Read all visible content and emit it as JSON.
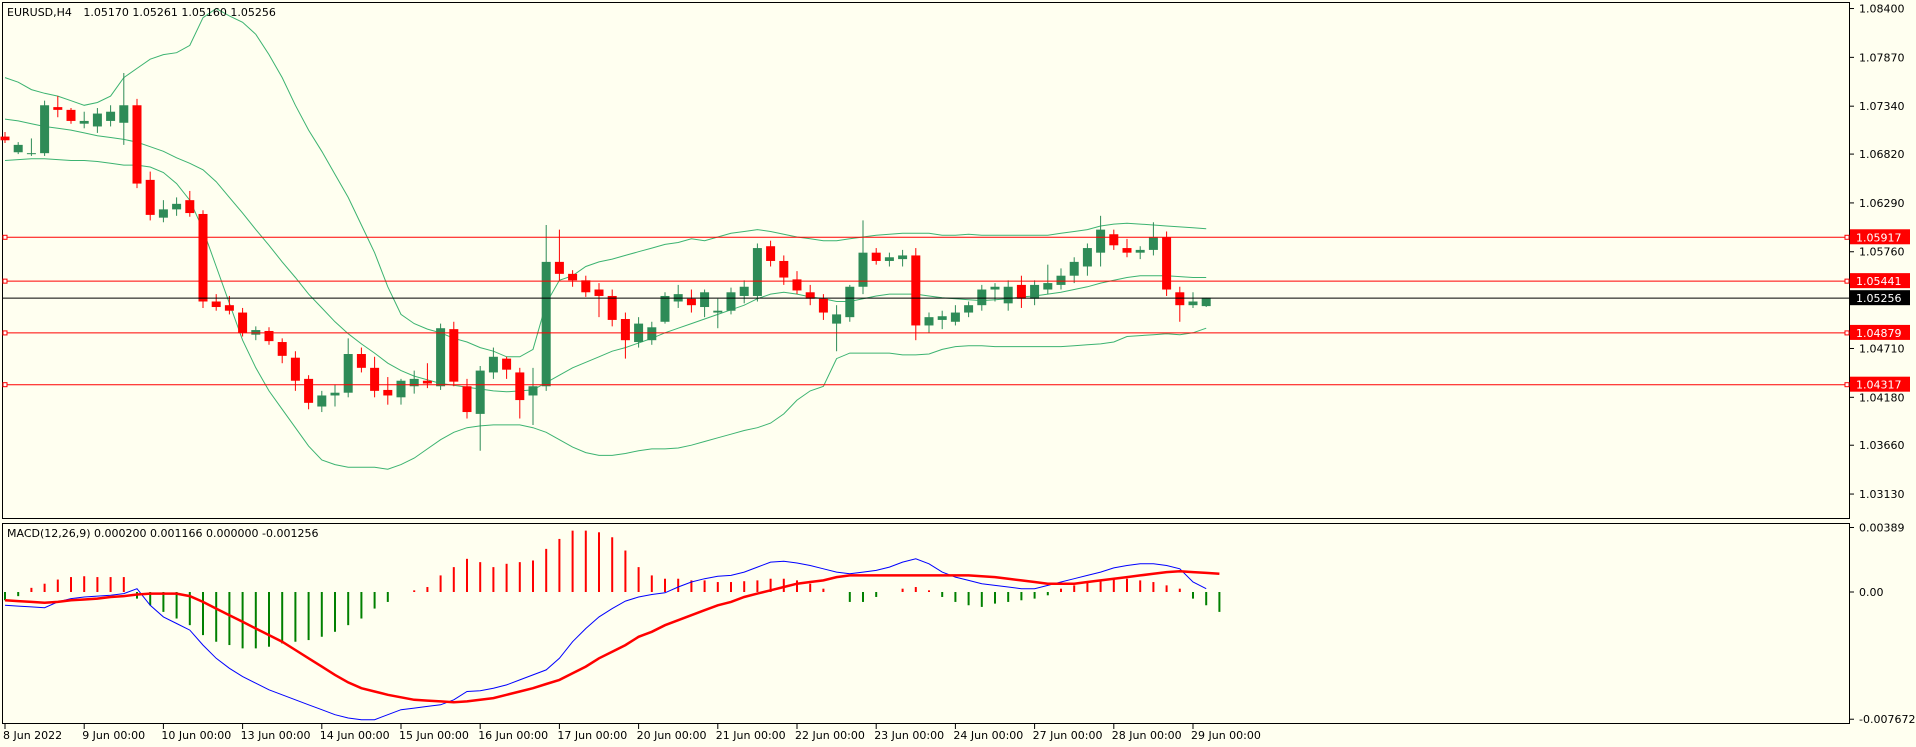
{
  "header": {
    "symbol": "EURUSD,H4",
    "ohlc": "1.05170 1.05261 1.05160 1.05256"
  },
  "macd_header": "MACD(12,26,9) 0.000200 0.001166 0.000000 -0.001256",
  "colors": {
    "background": "#fffff0",
    "bull_candle": "#2e8b57",
    "bear_candle": "#ff0000",
    "bollinger": "#3cb371",
    "level_line": "#ff0000",
    "current_price_line": "#000000",
    "macd_line": "#0000ff",
    "signal_line": "#ff0000",
    "hist_positive": "#ff0000",
    "hist_negative": "#008000"
  },
  "chart_data": [
    {
      "type": "candlestick",
      "title": "",
      "y_axis": {
        "range": [
          1.0287,
          1.0846
        ],
        "ticks": [
          "1.08400",
          "1.07870",
          "1.07340",
          "1.06820",
          "1.06290",
          "1.05760",
          "1.04710",
          "1.04180",
          "1.03660",
          "1.03130"
        ]
      },
      "x_axis": {
        "ticks": [
          "8 Jun 2022",
          "9 Jun 00:00",
          "10 Jun 00:00",
          "13 Jun 00:00",
          "14 Jun 00:00",
          "15 Jun 00:00",
          "16 Jun 00:00",
          "17 Jun 00:00",
          "20 Jun 00:00",
          "21 Jun 00:00",
          "22 Jun 00:00",
          "23 Jun 00:00",
          "24 Jun 00:00",
          "27 Jun 00:00",
          "28 Jun 00:00",
          "29 Jun 00:00"
        ],
        "tick_bar_index": [
          0,
          6,
          12,
          18,
          24,
          30,
          36,
          42,
          48,
          54,
          60,
          66,
          72,
          78,
          84,
          90
        ]
      },
      "horizontal_levels": [
        {
          "price": 1.05917,
          "label": "1.05917"
        },
        {
          "price": 1.05441,
          "label": "1.05441"
        },
        {
          "price": 1.04879,
          "label": "1.04879"
        },
        {
          "price": 1.04317,
          "label": "1.04317"
        }
      ],
      "current_price": {
        "price": 1.05256,
        "label": "1.05256"
      },
      "candles": [
        [
          1.0701,
          1.0706,
          1.0694,
          1.0697
        ],
        [
          1.0684,
          1.0695,
          1.0682,
          1.0692
        ],
        [
          1.0682,
          1.0699,
          1.068,
          1.0683
        ],
        [
          1.0683,
          1.074,
          1.068,
          1.0735
        ],
        [
          1.0733,
          1.0745,
          1.0722,
          1.073
        ],
        [
          1.073,
          1.0732,
          1.0715,
          1.0718
        ],
        [
          1.0715,
          1.0728,
          1.071,
          1.0718
        ],
        [
          1.0712,
          1.0732,
          1.0705,
          1.0726
        ],
        [
          1.0718,
          1.0735,
          1.0712,
          1.0728
        ],
        [
          1.0716,
          1.077,
          1.0692,
          1.0735
        ],
        [
          1.0735,
          1.0742,
          1.0645,
          1.065
        ],
        [
          1.0654,
          1.0663,
          1.061,
          1.0616
        ],
        [
          1.0613,
          1.0632,
          1.0608,
          1.0622
        ],
        [
          1.0622,
          1.0635,
          1.0615,
          1.0628
        ],
        [
          1.0632,
          1.0642,
          1.0614,
          1.0618
        ],
        [
          1.0617,
          1.0621,
          1.0515,
          1.0522
        ],
        [
          1.0522,
          1.053,
          1.0512,
          1.0516
        ],
        [
          1.0518,
          1.0528,
          1.0508,
          1.0512
        ],
        [
          1.051,
          1.0515,
          1.0484,
          1.0488
        ],
        [
          1.0486,
          1.0495,
          1.048,
          1.0491
        ],
        [
          1.049,
          1.0494,
          1.0475,
          1.0479
        ],
        [
          1.0478,
          1.0482,
          1.0455,
          1.0463
        ],
        [
          1.0461,
          1.0468,
          1.0425,
          1.0436
        ],
        [
          1.0438,
          1.0442,
          1.0405,
          1.0412
        ],
        [
          1.0408,
          1.0425,
          1.0402,
          1.042
        ],
        [
          1.042,
          1.0432,
          1.0408,
          1.0423
        ],
        [
          1.0423,
          1.0482,
          1.0418,
          1.0465
        ],
        [
          1.0465,
          1.0472,
          1.0445,
          1.045
        ],
        [
          1.045,
          1.0462,
          1.0418,
          1.0425
        ],
        [
          1.0426,
          1.044,
          1.041,
          1.042
        ],
        [
          1.0418,
          1.0438,
          1.041,
          1.0436
        ],
        [
          1.043,
          1.0447,
          1.0422,
          1.0438
        ],
        [
          1.0436,
          1.0455,
          1.0428,
          1.0433
        ],
        [
          1.043,
          1.0498,
          1.0426,
          1.0493
        ],
        [
          1.0492,
          1.05,
          1.043,
          1.0435
        ],
        [
          1.043,
          1.0438,
          1.0395,
          1.0402
        ],
        [
          1.04,
          1.0452,
          1.036,
          1.0447
        ],
        [
          1.0445,
          1.0472,
          1.0438,
          1.0462
        ],
        [
          1.046,
          1.0462,
          1.0438,
          1.0448
        ],
        [
          1.0445,
          1.045,
          1.0395,
          1.0415
        ],
        [
          1.042,
          1.045,
          1.0388,
          1.043
        ],
        [
          1.043,
          1.0605,
          1.0425,
          1.0565
        ],
        [
          1.0565,
          1.06,
          1.0545,
          1.0552
        ],
        [
          1.0552,
          1.0556,
          1.0538,
          1.0545
        ],
        [
          1.0545,
          1.055,
          1.0527,
          1.0532
        ],
        [
          1.0535,
          1.0542,
          1.0505,
          1.0528
        ],
        [
          1.0528,
          1.0535,
          1.0495,
          1.0502
        ],
        [
          1.0503,
          1.051,
          1.046,
          1.048
        ],
        [
          1.0478,
          1.0505,
          1.0472,
          1.0498
        ],
        [
          1.048,
          1.05,
          1.0475,
          1.0494
        ],
        [
          1.05,
          1.0532,
          1.0498,
          1.0528
        ],
        [
          1.0522,
          1.054,
          1.0515,
          1.053
        ],
        [
          1.0525,
          1.0535,
          1.051,
          1.0518
        ],
        [
          1.0516,
          1.0535,
          1.0505,
          1.0532
        ],
        [
          1.051,
          1.0525,
          1.0493,
          1.0512
        ],
        [
          1.0512,
          1.0537,
          1.0508,
          1.0532
        ],
        [
          1.0528,
          1.0545,
          1.052,
          1.0538
        ],
        [
          1.0528,
          1.0585,
          1.0522,
          1.058
        ],
        [
          1.0582,
          1.0588,
          1.056,
          1.0566
        ],
        [
          1.0566,
          1.0572,
          1.054,
          1.0548
        ],
        [
          1.0546,
          1.0555,
          1.053,
          1.0534
        ],
        [
          1.0532,
          1.054,
          1.0518,
          1.0525
        ],
        [
          1.0525,
          1.053,
          1.0502,
          1.051
        ],
        [
          1.0498,
          1.0518,
          1.0468,
          1.0508
        ],
        [
          1.0505,
          1.054,
          1.05,
          1.0538
        ],
        [
          1.0538,
          1.061,
          1.053,
          1.0575
        ],
        [
          1.0575,
          1.058,
          1.0562,
          1.0566
        ],
        [
          1.0566,
          1.0575,
          1.056,
          1.057
        ],
        [
          1.0568,
          1.0578,
          1.056,
          1.0572
        ],
        [
          1.0572,
          1.058,
          1.048,
          1.0496
        ],
        [
          1.0496,
          1.051,
          1.0488,
          1.0505
        ],
        [
          1.0502,
          1.0512,
          1.0492,
          1.0506
        ],
        [
          1.05,
          1.0518,
          1.0496,
          1.051
        ],
        [
          1.051,
          1.0522,
          1.0505,
          1.0518
        ],
        [
          1.0518,
          1.054,
          1.0512,
          1.0535
        ],
        [
          1.0535,
          1.0542,
          1.0522,
          1.0538
        ],
        [
          1.052,
          1.0545,
          1.0512,
          1.0538
        ],
        [
          1.054,
          1.055,
          1.0515,
          1.0525
        ],
        [
          1.0525,
          1.0545,
          1.0518,
          1.054
        ],
        [
          1.0535,
          1.0562,
          1.053,
          1.0542
        ],
        [
          1.054,
          1.0558,
          1.0535,
          1.055
        ],
        [
          1.055,
          1.057,
          1.0542,
          1.0565
        ],
        [
          1.056,
          1.0585,
          1.055,
          1.058
        ],
        [
          1.0575,
          1.0615,
          1.056,
          1.06
        ],
        [
          1.0595,
          1.06,
          1.0578,
          1.0583
        ],
        [
          1.058,
          1.059,
          1.057,
          1.0575
        ],
        [
          1.0575,
          1.0582,
          1.0568,
          1.0578
        ],
        [
          1.0578,
          1.0608,
          1.0572,
          1.0592
        ],
        [
          1.0592,
          1.0598,
          1.0528,
          1.0535
        ],
        [
          1.0532,
          1.0538,
          1.05,
          1.0518
        ],
        [
          1.0518,
          1.0532,
          1.0515,
          1.0522
        ],
        [
          1.0517,
          1.0526,
          1.0516,
          1.0526
        ]
      ],
      "bollinger_upper": [
        1.0765,
        1.076,
        1.0752,
        1.0748,
        1.0745,
        1.074,
        1.0735,
        1.0738,
        1.0745,
        1.0765,
        1.0775,
        1.0785,
        1.079,
        1.0792,
        1.08,
        1.083,
        1.084,
        1.0832,
        1.0825,
        1.0812,
        1.079,
        1.0765,
        1.0735,
        1.0708,
        1.0685,
        1.066,
        1.0635,
        1.0605,
        1.0575,
        1.0538,
        1.0508,
        1.0498,
        1.0492,
        1.0488,
        1.0482,
        1.0478,
        1.0472,
        1.0468,
        1.0462,
        1.0462,
        1.047,
        1.052,
        1.0545,
        1.055,
        1.056,
        1.0565,
        1.0568,
        1.0572,
        1.0576,
        1.058,
        1.0584,
        1.0586,
        1.059,
        1.0588,
        1.0592,
        1.0596,
        1.0598,
        1.06,
        1.0598,
        1.0595,
        1.0592,
        1.059,
        1.0588,
        1.0588,
        1.059,
        1.0592,
        1.0594,
        1.0595,
        1.0596,
        1.0596,
        1.0596,
        1.0594,
        1.0594,
        1.0595,
        1.0594,
        1.0594,
        1.0594,
        1.0594,
        1.0594,
        1.0594,
        1.0596,
        1.0598,
        1.06,
        1.0604,
        1.0606,
        1.0607,
        1.0606,
        1.0605,
        1.0604,
        1.0603,
        1.0602,
        1.0601
      ],
      "bollinger_middle": [
        1.072,
        1.0718,
        1.0715,
        1.0712,
        1.071,
        1.0708,
        1.0705,
        1.0702,
        1.07,
        1.0698,
        1.0695,
        1.069,
        1.0685,
        1.0678,
        1.0672,
        1.0665,
        1.0652,
        1.0635,
        1.0618,
        1.06,
        1.0583,
        1.0565,
        1.0548,
        1.053,
        1.0515,
        1.05,
        1.0487,
        1.0476,
        1.0466,
        1.0455,
        1.0447,
        1.0441,
        1.0437,
        1.0433,
        1.0431,
        1.0429,
        1.0427,
        1.0425,
        1.0424,
        1.0425,
        1.0426,
        1.0434,
        1.0442,
        1.045,
        1.0456,
        1.0462,
        1.0468,
        1.0472,
        1.0477,
        1.0482,
        1.0488,
        1.0493,
        1.0498,
        1.0503,
        1.0508,
        1.0513,
        1.0518,
        1.0525,
        1.053,
        1.0532,
        1.053,
        1.0527,
        1.0525,
        1.0522,
        1.0522,
        1.0525,
        1.0528,
        1.053,
        1.053,
        1.053,
        1.0528,
        1.0526,
        1.0525,
        1.0524,
        1.0523,
        1.0524,
        1.0525,
        1.0527,
        1.0528,
        1.053,
        1.0532,
        1.0535,
        1.0538,
        1.0542,
        1.0545,
        1.0548,
        1.055,
        1.055,
        1.055,
        1.0549,
        1.0548,
        1.0548
      ],
      "bollinger_lower": [
        1.0675,
        1.0676,
        1.0677,
        1.0677,
        1.0676,
        1.0675,
        1.0675,
        1.0674,
        1.0672,
        1.067,
        1.067,
        1.0668,
        1.0662,
        1.065,
        1.0632,
        1.06,
        1.056,
        1.052,
        1.048,
        1.045,
        1.0425,
        1.0405,
        1.0385,
        1.0365,
        1.035,
        1.0345,
        1.0342,
        1.0342,
        1.0342,
        1.034,
        1.0345,
        1.0352,
        1.0362,
        1.0372,
        1.038,
        1.0385,
        1.0387,
        1.0388,
        1.0388,
        1.0388,
        1.0385,
        1.038,
        1.0372,
        1.0364,
        1.0358,
        1.0355,
        1.0355,
        1.0357,
        1.036,
        1.0362,
        1.0362,
        1.0363,
        1.0366,
        1.037,
        1.0374,
        1.0378,
        1.0382,
        1.0385,
        1.039,
        1.04,
        1.0415,
        1.0425,
        1.043,
        1.046,
        1.0466,
        1.0466,
        1.0466,
        1.0466,
        1.0464,
        1.0464,
        1.0465,
        1.047,
        1.0473,
        1.0474,
        1.0474,
        1.0473,
        1.0473,
        1.0473,
        1.0473,
        1.0473,
        1.0473,
        1.0474,
        1.0475,
        1.0476,
        1.0478,
        1.0484,
        1.0485,
        1.0486,
        1.0487,
        1.0486,
        1.0488,
        1.0493
      ]
    },
    {
      "type": "line",
      "title": "MACD(12,26,9)",
      "y_axis": {
        "range": [
          -0.0079,
          0.0041
        ],
        "ticks": [
          "0.00389",
          "0.00",
          "-0.007672"
        ]
      },
      "macd": [
        -0.0008,
        -0.00085,
        -0.0009,
        -0.00095,
        -0.0006,
        -0.0004,
        -0.0003,
        -0.00025,
        -0.0002,
        -0.0001,
        0.0002,
        -0.0008,
        -0.0015,
        -0.0019,
        -0.0023,
        -0.0032,
        -0.004,
        -0.0046,
        -0.0051,
        -0.0055,
        -0.0059,
        -0.0062,
        -0.0065,
        -0.0068,
        -0.0071,
        -0.0074,
        -0.0076,
        -0.0077,
        -0.0077,
        -0.0074,
        -0.0071,
        -0.007,
        -0.0069,
        -0.0068,
        -0.0065,
        -0.006,
        -0.00595,
        -0.0058,
        -0.0056,
        -0.0053,
        -0.005,
        -0.0047,
        -0.004,
        -0.003,
        -0.0022,
        -0.0015,
        -0.001,
        -0.00055,
        -0.0003,
        -0.00015,
        -5e-05,
        0.0003,
        0.0006,
        0.0008,
        0.00095,
        0.001,
        0.0012,
        0.0015,
        0.0018,
        0.00185,
        0.00175,
        0.0016,
        0.0014,
        0.0012,
        0.0011,
        0.0012,
        0.0013,
        0.0015,
        0.0018,
        0.002,
        0.0017,
        0.0012,
        0.0009,
        0.0007,
        0.0005,
        0.0004,
        0.0003,
        0.0002,
        0.0002,
        0.0004,
        0.0006,
        0.0008,
        0.001,
        0.0012,
        0.00145,
        0.0016,
        0.0017,
        0.0017,
        0.0016,
        0.0014,
        0.0006,
        0.0002
      ],
      "signal": [
        -0.0005,
        -0.00055,
        -0.0006,
        -0.00065,
        -0.0006,
        -0.0005,
        -0.00045,
        -0.0004,
        -0.0003,
        -0.00025,
        -0.00015,
        -0.0001,
        -0.0001,
        -0.0001,
        -0.00025,
        -0.0006,
        -0.001,
        -0.0014,
        -0.0018,
        -0.0022,
        -0.0026,
        -0.003,
        -0.0035,
        -0.004,
        -0.0045,
        -0.005,
        -0.00545,
        -0.0058,
        -0.006,
        -0.0062,
        -0.00635,
        -0.0065,
        -0.00655,
        -0.0066,
        -0.00665,
        -0.0066,
        -0.0065,
        -0.0064,
        -0.0062,
        -0.006,
        -0.0058,
        -0.00555,
        -0.0053,
        -0.0049,
        -0.0045,
        -0.004,
        -0.0036,
        -0.0032,
        -0.0027,
        -0.0024,
        -0.002,
        -0.0017,
        -0.0014,
        -0.0011,
        -0.0008,
        -0.0006,
        -0.0003,
        -0.0001,
        0.0001,
        0.0003,
        0.0005,
        0.0006,
        0.0007,
        0.0009,
        0.001,
        0.001,
        0.001,
        0.001,
        0.001,
        0.001,
        0.001,
        0.001,
        0.001,
        0.001,
        0.00095,
        0.0009,
        0.0008,
        0.0007,
        0.0006,
        0.0005,
        0.0005,
        0.0005,
        0.0006,
        0.0007,
        0.0008,
        0.0009,
        0.001,
        0.0011,
        0.0012,
        0.00125,
        0.0012,
        0.00115,
        0.0011
      ],
      "histogram": [
        -0.0005,
        -0.00025,
        0.00025,
        0.0005,
        0.00075,
        0.0009,
        0.00095,
        0.0009,
        0.0009,
        0.0009,
        -0.0004,
        -0.0008,
        -0.0012,
        -0.0016,
        -0.002,
        -0.0026,
        -0.003,
        -0.0032,
        -0.0034,
        -0.0034,
        -0.0033,
        -0.0031,
        -0.003,
        -0.0029,
        -0.0027,
        -0.0024,
        -0.002,
        -0.0016,
        -0.001,
        -0.0006,
        0.0,
        0.0001,
        0.0003,
        0.001,
        0.0015,
        0.002,
        0.0018,
        0.0015,
        0.0017,
        0.0018,
        0.0019,
        0.0026,
        0.0032,
        0.0037,
        0.0037,
        0.0036,
        0.0033,
        0.0025,
        0.0015,
        0.001,
        0.0008,
        0.0008,
        0.0007,
        0.0007,
        0.0006,
        0.0006,
        0.00065,
        0.0007,
        0.0008,
        0.0008,
        0.0007,
        0.0005,
        0.0002,
        0.0,
        -0.0006,
        -0.0006,
        -0.0003,
        0.0,
        0.0002,
        0.0003,
        0.0001,
        -0.0003,
        -0.0006,
        -0.0008,
        -0.0009,
        -0.0007,
        -0.0006,
        -0.0005,
        -0.0004,
        -0.0002,
        0.0002,
        0.0004,
        0.0006,
        0.0007,
        0.0008,
        0.0008,
        0.0007,
        0.0006,
        0.0004,
        0.0002,
        -0.0004,
        -0.0008,
        -0.0012
      ]
    }
  ]
}
